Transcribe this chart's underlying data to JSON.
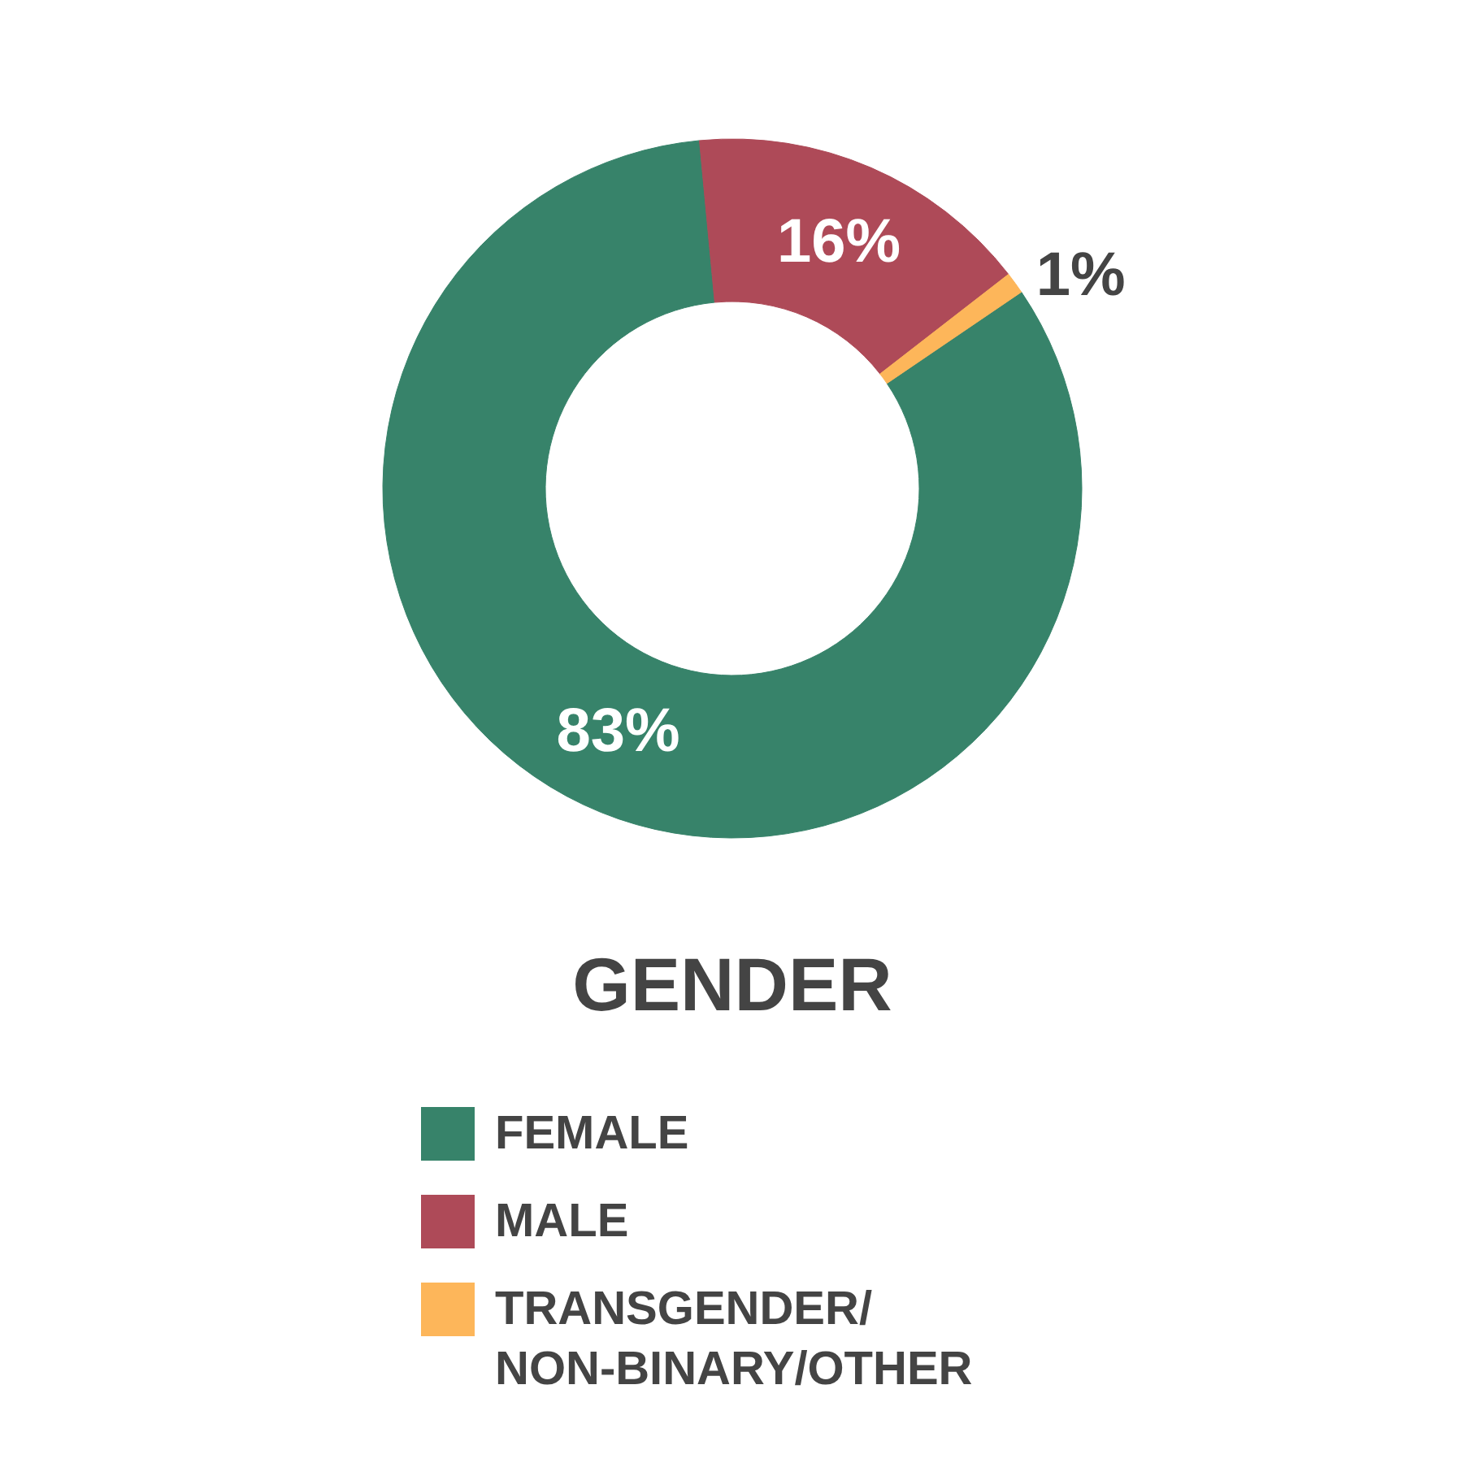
{
  "chart_data": {
    "type": "donut",
    "title": "GENDER",
    "categories": [
      "FEMALE",
      "MALE",
      "TRANSGENDER/NON-BINARY/OTHER"
    ],
    "values": [
      83,
      16,
      1
    ],
    "colors": [
      "#37836a",
      "#ae4a58",
      "#fdb65a"
    ],
    "value_labels": [
      "83%",
      "16%",
      "1%"
    ],
    "legend": "bottom"
  }
}
